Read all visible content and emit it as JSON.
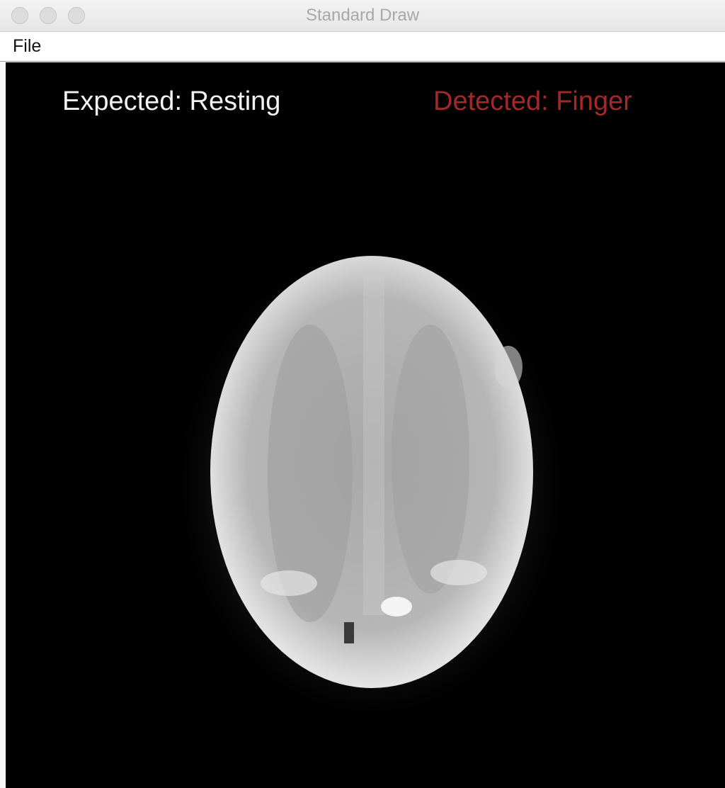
{
  "window": {
    "title": "Standard Draw"
  },
  "menu": {
    "file_label": "File"
  },
  "canvas": {
    "expected_label": "Expected: Resting",
    "detected_label": "Detected: Finger",
    "colors": {
      "background": "#000000",
      "expected_text": "#f2f2f2",
      "detected_text": "#a3282a"
    },
    "image_description_icon": "brain-scan-image"
  }
}
